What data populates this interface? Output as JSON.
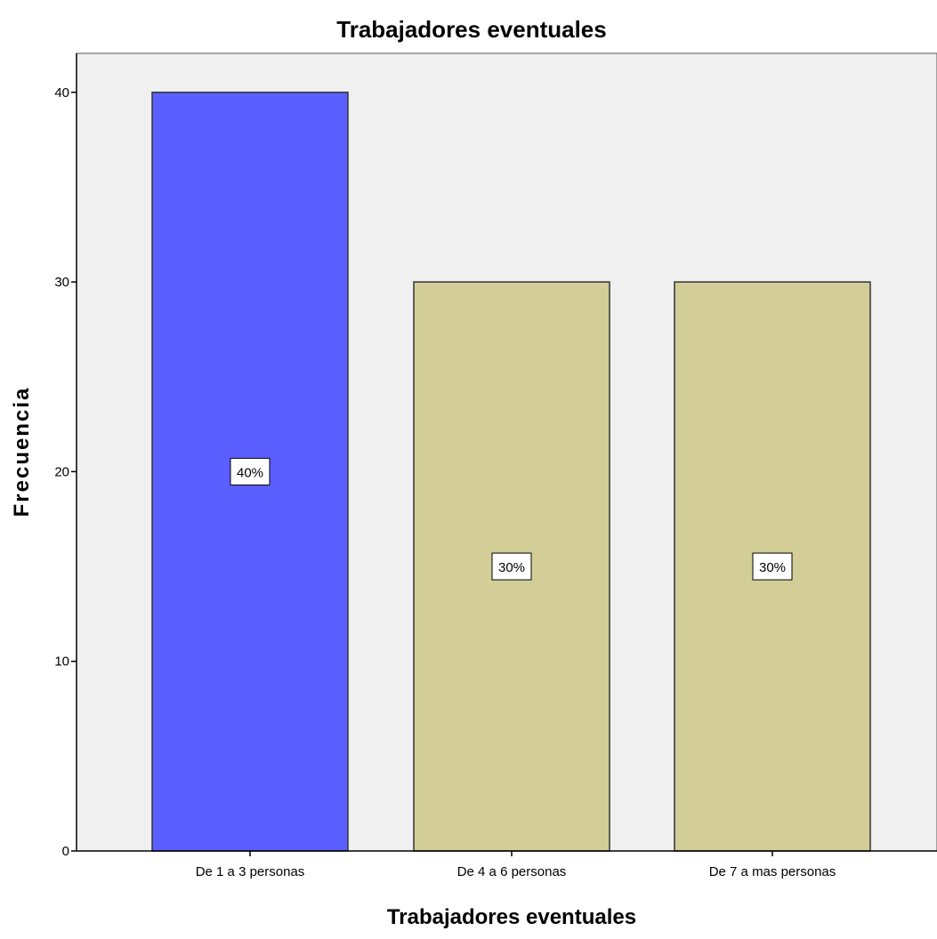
{
  "chart_data": {
    "type": "bar",
    "title": "Trabajadores eventuales",
    "xlabel": "Trabajadores eventuales",
    "ylabel": "Frecuencia",
    "categories": [
      "De 1 a 3 personas",
      "De 4 a 6 personas",
      "De 7 a mas personas"
    ],
    "values": [
      40,
      30,
      30
    ],
    "data_labels": [
      "40%",
      "30%",
      "30%"
    ],
    "ylim": [
      0,
      42
    ],
    "yticks": [
      0,
      10,
      20,
      30,
      40
    ],
    "grid": false,
    "colors": {
      "plot_background": "#f0f0f0",
      "bars": [
        "#5b5fff",
        "#d3cd98",
        "#d3cd98"
      ],
      "bar_outline": "#333333"
    }
  }
}
